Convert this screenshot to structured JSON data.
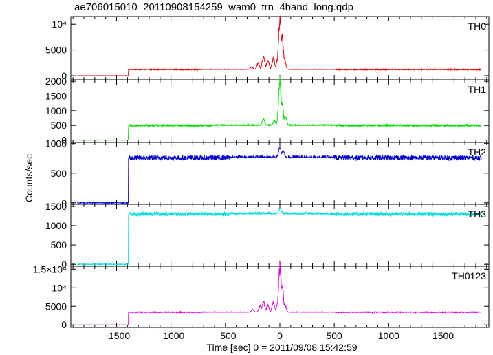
{
  "title": "ae706015010_20110908154259_wam0_trn_4band_long.qdp",
  "chart_data": {
    "type": "line",
    "title": "ae706015010_20110908154259_wam0_trn_4band_long.qdp",
    "xlabel": "Time [sec] 0 = 2011/09/08 15:42:59",
    "ylabel": "Counts/sec",
    "xlim": [
      -1920,
      1920
    ],
    "x_ticks": [
      -1500,
      -1000,
      -500,
      0,
      500,
      1000,
      1500
    ],
    "x_tick_labels": [
      "−1500",
      "−1000",
      "−500",
      "0",
      "500",
      "1000",
      "1500"
    ],
    "grid": false,
    "panels": [
      {
        "name": "TH0",
        "color": "#e00000",
        "ylim": [
          -800,
          11500
        ],
        "yticks": [
          0,
          5000,
          10000
        ],
        "ytick_labels": [
          "0",
          "5000",
          "10⁴"
        ],
        "x_range": [
          -1860,
          1850
        ],
        "pre_level": 0,
        "baseline": 1200,
        "noise": 90,
        "peaks": [
          [
            -260,
            1700
          ],
          [
            -200,
            2400
          ],
          [
            -150,
            3600
          ],
          [
            -110,
            2900
          ],
          [
            -60,
            3300
          ],
          [
            -20,
            3200
          ],
          [
            0,
            11000
          ],
          [
            20,
            8000
          ],
          [
            40,
            3500
          ]
        ]
      },
      {
        "name": "TH1",
        "color": "#00e000",
        "ylim": [
          -80,
          2050
        ],
        "yticks": [
          0,
          500,
          1000,
          1500,
          2000
        ],
        "ytick_labels": [
          "0",
          "500",
          "1000",
          "1500",
          "2000"
        ],
        "x_range": [
          -1860,
          1850
        ],
        "pre_level": 0,
        "baseline": 500,
        "noise": 35,
        "peaks": [
          [
            -150,
            700
          ],
          [
            -50,
            650
          ],
          [
            0,
            1950
          ],
          [
            20,
            1250
          ],
          [
            50,
            800
          ]
        ]
      },
      {
        "name": "TH2",
        "color": "#0000d0",
        "ylim": [
          -25,
          1020
        ],
        "yticks": [
          0,
          500,
          1000
        ],
        "ytick_labels": [
          "0",
          "500",
          "1000"
        ],
        "x_range": [
          -1860,
          1850
        ],
        "pre_level": 0,
        "baseline": 760,
        "noise": 40,
        "peaks": [
          [
            0,
            930
          ],
          [
            30,
            880
          ]
        ]
      },
      {
        "name": "TH3",
        "color": "#00e0e0",
        "ylim": [
          -50,
          1550
        ],
        "yticks": [
          0,
          500,
          1000,
          1500
        ],
        "ytick_labels": [
          "0",
          "500",
          "1000",
          "1500"
        ],
        "x_range": [
          -1860,
          1850
        ],
        "pre_level": 0,
        "baseline": 1300,
        "noise": 50,
        "peaks": [
          [
            0,
            1450
          ]
        ]
      },
      {
        "name": "TH0123",
        "color": "#e000e0",
        "ylim": [
          -700,
          15800
        ],
        "yticks": [
          0,
          5000,
          10000,
          15000
        ],
        "ytick_labels": [
          "0",
          "5000",
          "10⁴",
          "1.5×10⁴"
        ],
        "x_range": [
          -1860,
          1850
        ],
        "pre_level": 0,
        "baseline": 3400,
        "noise": 120,
        "peaks": [
          [
            -250,
            4100
          ],
          [
            -180,
            5200
          ],
          [
            -150,
            6200
          ],
          [
            -110,
            5200
          ],
          [
            -60,
            6000
          ],
          [
            -20,
            5600
          ],
          [
            0,
            15500
          ],
          [
            20,
            11000
          ],
          [
            45,
            5500
          ]
        ]
      }
    ],
    "step_x": -1390
  }
}
